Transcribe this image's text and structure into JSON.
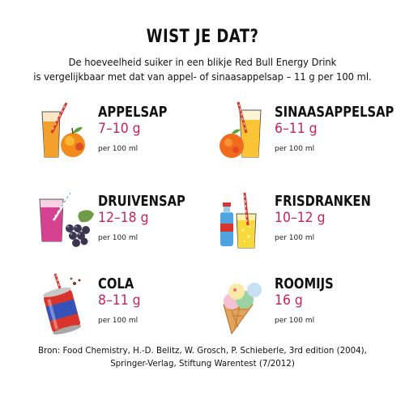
{
  "title": "WIST JE DAT?",
  "intro": [
    "De hoeveelheid suiker in een blikje Red Bull Energy Drink",
    "is vergelijkbaar met dat van appel- of sinaasappelsap – 11 g per 100 ml."
  ],
  "items": [
    {
      "name": "APPELSAP",
      "amount": "7–10 g",
      "unit": "per 100 ml",
      "icon": "apple-juice-icon"
    },
    {
      "name": "SINAASAPPELSAP",
      "amount": "6–11 g",
      "unit": "per 100 ml",
      "icon": "orange-juice-icon"
    },
    {
      "name": "DRUIVENSAP",
      "amount": "12–18 g",
      "unit": "per 100 ml",
      "icon": "grape-juice-icon"
    },
    {
      "name": "FRISDRANKEN",
      "amount": "10–12 g",
      "unit": "per 100 ml",
      "icon": "soft-drinks-icon"
    },
    {
      "name": "COLA",
      "amount": "8–11 g",
      "unit": "per 100 ml",
      "icon": "cola-can-icon"
    },
    {
      "name": "ROOMIJS",
      "amount": "16 g",
      "unit": "per 100 ml",
      "icon": "ice-cream-icon"
    }
  ],
  "source": [
    "Bron: Food Chemistry, H.-D. Belitz, W. Grosch, P. Schieberle, 3rd edition (2004),",
    "Springer-Verlag, Stiftung Warentest (7/2012)"
  ],
  "colors": {
    "accent": "#c1245f",
    "text": "#111111"
  }
}
